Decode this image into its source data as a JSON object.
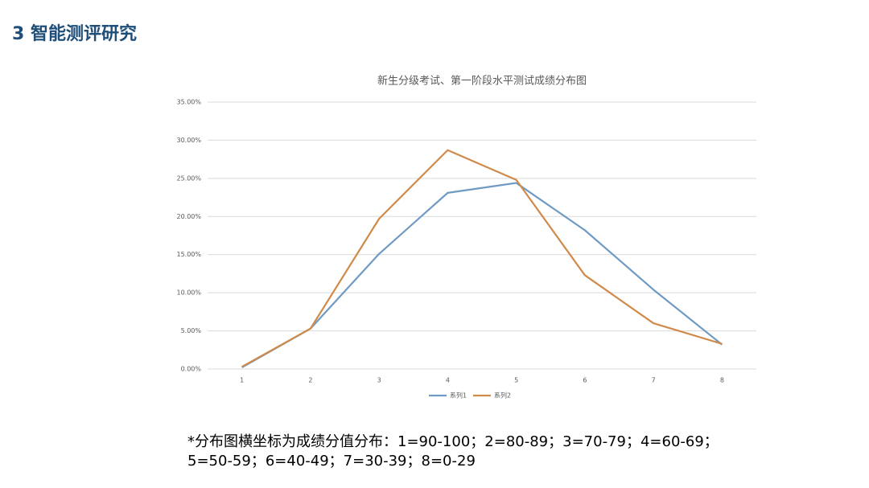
{
  "header": {
    "title": "3 智能测评研究"
  },
  "chart_data": {
    "type": "line",
    "title": "新生分级考试、第一阶段水平测试成绩分布图",
    "categories": [
      "1",
      "2",
      "3",
      "4",
      "5",
      "6",
      "7",
      "8"
    ],
    "series": [
      {
        "name": "系列1",
        "color": "#6f9ac3",
        "values": [
          0.2,
          5.3,
          15.1,
          23.1,
          24.4,
          18.2,
          10.4,
          3.2
        ]
      },
      {
        "name": "系列2",
        "color": "#d08a4a",
        "values": [
          0.3,
          5.3,
          19.7,
          28.7,
          24.8,
          12.3,
          6.0,
          3.3
        ]
      }
    ],
    "ylim": [
      0,
      35
    ],
    "yticks": [
      {
        "value": 0,
        "label": "0.00%"
      },
      {
        "value": 5,
        "label": "5.00%"
      },
      {
        "value": 10,
        "label": "10.00%"
      },
      {
        "value": 15,
        "label": "15.00%"
      },
      {
        "value": 20,
        "label": "20.00%"
      },
      {
        "value": 25,
        "label": "25.00%"
      },
      {
        "value": 30,
        "label": "30.00%"
      },
      {
        "value": 35,
        "label": "35.00%"
      }
    ],
    "grid": true,
    "legend": "bottom"
  },
  "footnote": [
    "*分布图横坐标为成绩分值分布：1=90-100；2=80-89；3=70-79；4=60-69；",
    "5=50-59；6=40-49；7=30-39；8=0-29"
  ]
}
